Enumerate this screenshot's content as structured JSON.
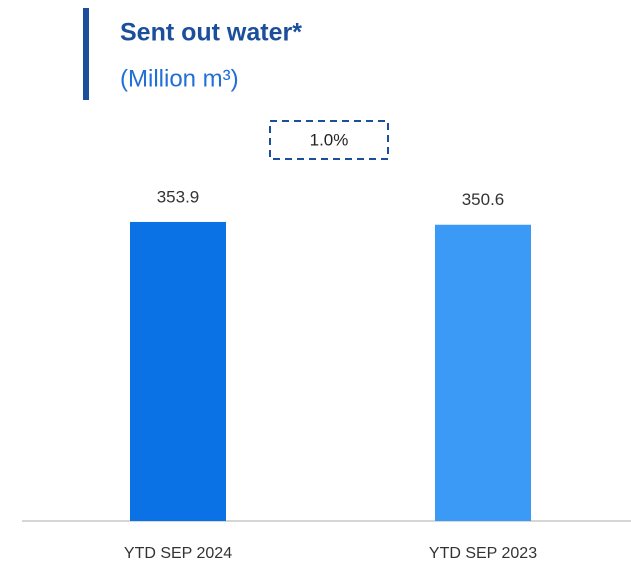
{
  "chart_data": {
    "type": "bar",
    "title": "Sent out water*",
    "subtitle": "(Million m³)",
    "annotation": "1.0%",
    "categories": [
      "YTD SEP 2024",
      "YTD SEP 2023"
    ],
    "values": [
      353.9,
      350.6
    ],
    "colors": [
      "#0b72e6",
      "#3b9af6"
    ]
  }
}
